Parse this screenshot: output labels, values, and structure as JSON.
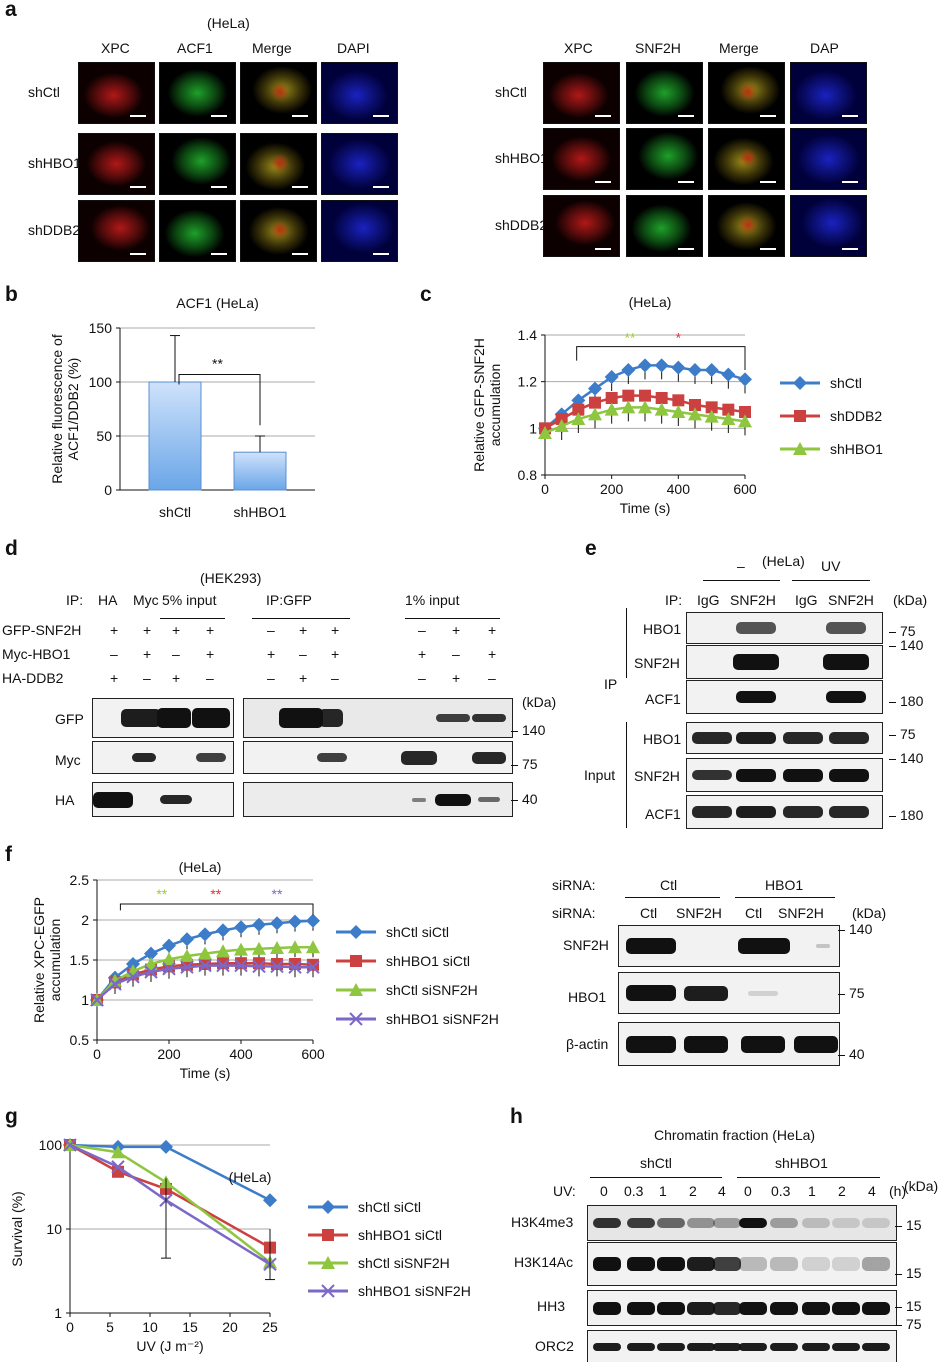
{
  "panel_a": {
    "letter": "a",
    "cell_line": "(HeLa)",
    "left": {
      "columns": [
        "XPC",
        "ACF1",
        "Merge",
        "DAPI"
      ],
      "rows": [
        "shCtl",
        "shHBO1",
        "shDDB2"
      ]
    },
    "right": {
      "columns": [
        "XPC",
        "SNF2H",
        "Merge",
        "DAP"
      ],
      "rows": [
        "shCtl",
        "shHBO1",
        "shDDB2"
      ]
    },
    "colors": {
      "red": "#b01818",
      "green": "#1fa02a",
      "merge": "#9a8a1a",
      "blue": "#1a22c0"
    }
  },
  "panel_b": {
    "letter": "b"
  },
  "panel_c": {
    "letter": "c",
    "cell_line": "(HeLa)"
  },
  "panel_d": {
    "letter": "d",
    "cell_line": "(HEK293)",
    "ip_label": "IP:",
    "ip_groups": [
      "HA",
      "Myc",
      "5% input",
      "IP:GFP",
      "1%  input"
    ],
    "row_labels": [
      "GFP-SNF2H",
      "Myc-HBO1",
      "HA-DDB2"
    ],
    "signs": [
      [
        "+",
        "+",
        "+",
        "+",
        "–",
        "+",
        "+",
        "–",
        "+",
        "+"
      ],
      [
        "–",
        "+",
        "–",
        "+",
        "+",
        "–",
        "+",
        "+",
        "–",
        "+"
      ],
      [
        "+",
        "–",
        "+",
        "–",
        "–",
        "+",
        "–",
        "–",
        "+",
        "–"
      ]
    ],
    "blot_labels": [
      "GFP",
      "Myc",
      "HA"
    ],
    "kda": "(kDa)",
    "markers": [
      "140",
      "75",
      "40"
    ]
  },
  "panel_e": {
    "letter": "e",
    "cell_line": "(HeLa)",
    "cond_minus": "–",
    "cond_uv": "UV",
    "ip_label": "IP:",
    "lanes": [
      "IgG",
      "SNF2H",
      "IgG",
      "SNF2H"
    ],
    "kda": "(kDa)",
    "group_ip": "IP",
    "group_input": "Input",
    "blots": [
      "HBO1",
      "SNF2H",
      "ACF1",
      "HBO1",
      "SNF2H",
      "ACF1"
    ],
    "markers": [
      "75",
      "140",
      "180",
      "75",
      "140",
      "180"
    ]
  },
  "panel_f": {
    "letter": "f",
    "cell_line": "(HeLa)",
    "sirna_label": "siRNA:",
    "top_groups": [
      "Ctl",
      "HBO1"
    ],
    "lanes": [
      "Ctl",
      "SNF2H",
      "Ctl",
      "SNF2H"
    ],
    "kda": "(kDa)",
    "blots": [
      "SNF2H",
      "HBO1",
      "β-actin"
    ],
    "markers": [
      "140",
      "75",
      "40"
    ]
  },
  "panel_g": {
    "letter": "g",
    "cell_line": "(HeLa)"
  },
  "panel_h": {
    "letter": "h",
    "title": "Chromatin fraction (HeLa)",
    "groups": [
      "shCtl",
      "shHBO1"
    ],
    "uv_label": "UV:",
    "doses": [
      "0",
      "0.3",
      "1",
      "2",
      "4",
      "0",
      "0.3",
      "1",
      "2",
      "4"
    ],
    "unit": "(h)",
    "kda": "(kDa)",
    "blots": [
      "H3K4me3",
      "H3K14Ac",
      "HH3",
      "ORC2"
    ],
    "markers": [
      "15",
      "15",
      "15",
      "75"
    ]
  },
  "chart_data": [
    {
      "id": "b",
      "type": "bar",
      "title": "ACF1 (HeLa)",
      "categories": [
        "shCtl",
        "shHBO1"
      ],
      "values": [
        100,
        35
      ],
      "errors": [
        43,
        15
      ],
      "ylabel": "Relative fluorescence of ACF1/DDB2 (%)",
      "ylim": [
        0,
        150
      ],
      "yticks": [
        0,
        50,
        100,
        150
      ],
      "significance": "**",
      "bar_color": "#6aa6e8",
      "grid": true
    },
    {
      "id": "c",
      "type": "line",
      "xlabel": "Time (s)",
      "ylabel": "Relative GFP-SNF2H accumulation",
      "xlim": [
        0,
        600
      ],
      "ylim": [
        0.8,
        1.4
      ],
      "xticks": [
        0,
        200,
        400,
        600
      ],
      "yticks": [
        0.8,
        1.0,
        1.2,
        1.4
      ],
      "significance": [
        {
          "text": "**",
          "color": "#9acd32"
        },
        {
          "text": "*",
          "color": "#e03030"
        }
      ],
      "legend": "right",
      "grid": true,
      "series": [
        {
          "name": "shCtl",
          "color": "#3d7cc9",
          "marker": "diamond",
          "x": [
            0,
            50,
            100,
            150,
            200,
            250,
            300,
            350,
            400,
            450,
            500,
            550,
            600
          ],
          "y": [
            1.0,
            1.06,
            1.12,
            1.17,
            1.22,
            1.25,
            1.27,
            1.27,
            1.26,
            1.25,
            1.25,
            1.23,
            1.21
          ]
        },
        {
          "name": "shDDB2",
          "color": "#cc4040",
          "marker": "square",
          "x": [
            0,
            50,
            100,
            150,
            200,
            250,
            300,
            350,
            400,
            450,
            500,
            550,
            600
          ],
          "y": [
            1.0,
            1.04,
            1.08,
            1.11,
            1.13,
            1.14,
            1.14,
            1.13,
            1.12,
            1.1,
            1.09,
            1.08,
            1.07
          ]
        },
        {
          "name": "shHBO1",
          "color": "#8ec63f",
          "marker": "triangle",
          "x": [
            0,
            50,
            100,
            150,
            200,
            250,
            300,
            350,
            400,
            450,
            500,
            550,
            600
          ],
          "y": [
            0.98,
            1.01,
            1.04,
            1.06,
            1.08,
            1.09,
            1.09,
            1.08,
            1.07,
            1.06,
            1.05,
            1.04,
            1.03
          ]
        }
      ]
    },
    {
      "id": "f",
      "type": "line",
      "xlabel": "Time (s)",
      "ylabel": "Relative XPC-EGFP accumulation",
      "xlim": [
        0,
        600
      ],
      "ylim": [
        0.5,
        2.5
      ],
      "xticks": [
        0,
        200,
        400,
        600
      ],
      "yticks": [
        0.5,
        1.0,
        1.5,
        2.0,
        2.5
      ],
      "significance": [
        {
          "text": "**",
          "color": "#9acd32"
        },
        {
          "text": "**",
          "color": "#e03030"
        },
        {
          "text": "**",
          "color": "#7b68c8"
        }
      ],
      "legend": "right",
      "grid": true,
      "series": [
        {
          "name": "shCtl siCtl",
          "color": "#3d7cc9",
          "marker": "diamond",
          "x": [
            0,
            50,
            100,
            150,
            200,
            250,
            300,
            350,
            400,
            450,
            500,
            550,
            600
          ],
          "y": [
            1.0,
            1.28,
            1.45,
            1.58,
            1.68,
            1.76,
            1.82,
            1.87,
            1.91,
            1.94,
            1.96,
            1.98,
            1.99
          ]
        },
        {
          "name": "shHBO1 siCtl",
          "color": "#cc4040",
          "marker": "square",
          "x": [
            0,
            50,
            100,
            150,
            200,
            250,
            300,
            350,
            400,
            450,
            500,
            550,
            600
          ],
          "y": [
            1.0,
            1.22,
            1.32,
            1.38,
            1.42,
            1.44,
            1.45,
            1.46,
            1.46,
            1.46,
            1.45,
            1.45,
            1.44
          ]
        },
        {
          "name": "shCtl siSNF2H",
          "color": "#8ec63f",
          "marker": "triangle",
          "x": [
            0,
            50,
            100,
            150,
            200,
            250,
            300,
            350,
            400,
            450,
            500,
            550,
            600
          ],
          "y": [
            1.0,
            1.24,
            1.36,
            1.45,
            1.51,
            1.55,
            1.58,
            1.61,
            1.63,
            1.64,
            1.65,
            1.66,
            1.66
          ]
        },
        {
          "name": "shHBO1 siSNF2H",
          "color": "#7b68c8",
          "marker": "x",
          "x": [
            0,
            50,
            100,
            150,
            200,
            250,
            300,
            350,
            400,
            450,
            500,
            550,
            600
          ],
          "y": [
            1.0,
            1.2,
            1.29,
            1.35,
            1.39,
            1.41,
            1.43,
            1.43,
            1.43,
            1.42,
            1.42,
            1.41,
            1.41
          ]
        }
      ]
    },
    {
      "id": "g",
      "type": "line",
      "xlabel": "UV (J m⁻²)",
      "ylabel": "Survival (%)",
      "xlim": [
        0,
        25
      ],
      "ylim": [
        1,
        100
      ],
      "yscale": "log",
      "xticks": [
        0,
        5,
        10,
        15,
        20,
        25
      ],
      "yticks": [
        1,
        10,
        100
      ],
      "legend": "right",
      "grid": true,
      "series": [
        {
          "name": "shCtl siCtl",
          "color": "#3d7cc9",
          "marker": "diamond",
          "x": [
            0,
            6,
            12,
            25
          ],
          "y": [
            100,
            95,
            95,
            22
          ]
        },
        {
          "name": "shHBO1 siCtl",
          "color": "#cc4040",
          "marker": "square",
          "x": [
            0,
            6,
            12,
            25
          ],
          "y": [
            100,
            48,
            30,
            6
          ]
        },
        {
          "name": "shCtl siSNF2H",
          "color": "#8ec63f",
          "marker": "triangle",
          "x": [
            0,
            6,
            12,
            25
          ],
          "y": [
            100,
            82,
            36,
            4
          ]
        },
        {
          "name": "shHBO1 siSNF2H",
          "color": "#7b68c8",
          "marker": "x",
          "x": [
            0,
            6,
            12,
            25
          ],
          "y": [
            100,
            55,
            22,
            3.8
          ]
        }
      ]
    }
  ]
}
